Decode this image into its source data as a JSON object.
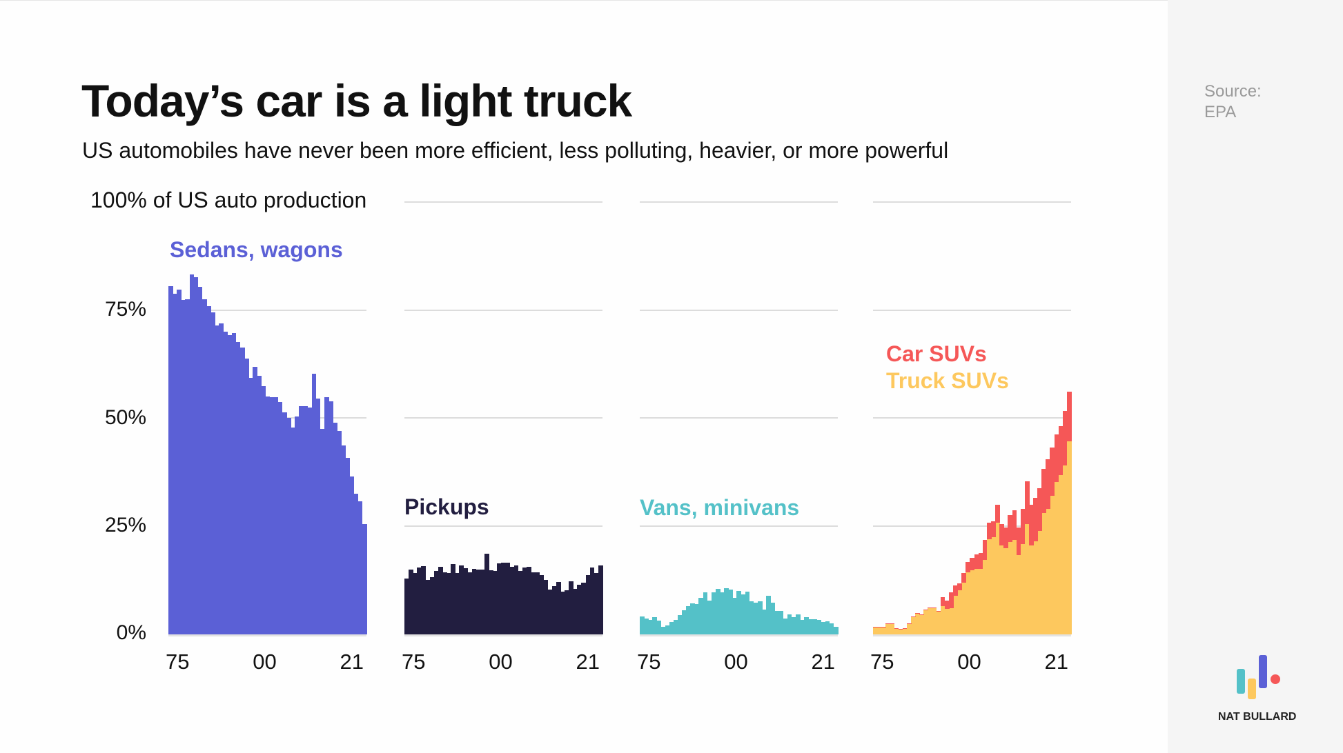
{
  "title": "Today’s car is a light truck",
  "subtitle": "US automobiles have never been more efficient, less polluting, heavier, or more powerful",
  "source": {
    "label": "Source:",
    "value": "EPA"
  },
  "brand": "NAT BULLARD",
  "colors": {
    "sedans": "#5b60d6",
    "pickups": "#221e40",
    "vans": "#54c1c8",
    "car_suvs": "#f55757",
    "truck_suvs": "#fdc85e"
  },
  "chart_data": {
    "type": "bar",
    "title": "Today’s car is a light truck",
    "ylabel": "100% of US auto production",
    "ylim": [
      0,
      100
    ],
    "yticks": [
      "0%",
      "25%",
      "50%",
      "75%"
    ],
    "xticks": [
      "75",
      "00",
      "21"
    ],
    "x": [
      1975,
      1976,
      1977,
      1978,
      1979,
      1980,
      1981,
      1982,
      1983,
      1984,
      1985,
      1986,
      1987,
      1988,
      1989,
      1990,
      1991,
      1992,
      1993,
      1994,
      1995,
      1996,
      1997,
      1998,
      1999,
      2000,
      2001,
      2002,
      2003,
      2004,
      2005,
      2006,
      2007,
      2008,
      2009,
      2010,
      2011,
      2012,
      2013,
      2014,
      2015,
      2016,
      2017,
      2018,
      2019,
      2020,
      2021
    ],
    "grid": true,
    "panels": [
      {
        "label": "Sedans, wagons",
        "series": [
          {
            "name": "Sedans, wagons",
            "values": [
              80.6,
              78.9,
              79.9,
              77.4,
              77.7,
              83.4,
              82.7,
              80.5,
              77.7,
              76,
              74.6,
              71.6,
              72.1,
              70.2,
              69.3,
              69.8,
              67.8,
              66.5,
              63.9,
              59.5,
              62,
              59.9,
              57.5,
              55.1,
              55,
              55,
              53.8,
              51.4,
              50.2,
              48,
              50.5,
              52.9,
              52.9,
              52.6,
              60.4,
              54.6,
              47.6,
              55,
              54,
              49.1,
              47.1,
              43.8,
              40.9,
              36.6,
              32.6,
              30.8,
              25.5
            ]
          }
        ]
      },
      {
        "label": "Pickups",
        "series": [
          {
            "name": "Pickups",
            "values": [
              13,
              15,
              14.2,
              15.5,
              15.8,
              12.6,
              13.3,
              14.7,
              15.6,
              14.3,
              14.2,
              16.3,
              14.2,
              16,
              15.4,
              14.4,
              15.2,
              15,
              15,
              18.7,
              14.8,
              14.7,
              16.4,
              16.6,
              16.6,
              15.7,
              16,
              14.7,
              15.5,
              15.7,
              14.4,
              14.3,
              13.8,
              12.7,
              10.4,
              11.2,
              12.2,
              9.9,
              10.2,
              12.3,
              10.5,
              11.5,
              12,
              13.8,
              15.5,
              14.2,
              16
            ]
          }
        ]
      },
      {
        "label": "Vans, minivans",
        "series": [
          {
            "name": "Vans, minivans",
            "values": [
              4.2,
              3.7,
              3.4,
              4,
              3.2,
              1.8,
              2,
              2.9,
              3.4,
              4.4,
              5.6,
              6.5,
              7.2,
              7,
              8.5,
              9.7,
              7.9,
              9.7,
              10.6,
              9.7,
              10.7,
              10.4,
              8.5,
              10,
              9.3,
              9.9,
              7.6,
              7.4,
              7.6,
              5.8,
              9,
              7.4,
              5.4,
              5.4,
              3.6,
              4.6,
              4,
              4.6,
              3.3,
              4,
              3.5,
              3.5,
              3.4,
              2.8,
              3,
              2.6,
              1.7
            ]
          }
        ]
      },
      {
        "label": "",
        "stacked": true,
        "series": [
          {
            "name": "Truck SUVs",
            "values": [
              1.6,
              1.7,
              1.7,
              2.4,
              2.5,
              1.4,
              1.2,
              1.4,
              2.5,
              4.1,
              4.8,
              4.6,
              5.6,
              6.1,
              6.1,
              5.3,
              6.6,
              5.9,
              6.1,
              8.9,
              10.3,
              12,
              14.3,
              14.8,
              15.1,
              15.1,
              17.3,
              22.1,
              22.5,
              25.9,
              20.6,
              19.9,
              21.4,
              21.9,
              18.3,
              20.9,
              25.5,
              20.6,
              21.6,
              23.9,
              28.1,
              29,
              32.1,
              35.3,
              36.9,
              39.2,
              44.8
            ]
          },
          {
            "name": "Car SUVs",
            "values": [
              0.1,
              0.1,
              0.1,
              0.1,
              0.1,
              0.1,
              0.1,
              0.1,
              0.1,
              0.1,
              0.1,
              0.1,
              0.1,
              0.1,
              0.1,
              0.1,
              2,
              1.9,
              3.6,
              2.4,
              1.5,
              2.2,
              2.5,
              2.9,
              3.4,
              3.7,
              4.6,
              3.8,
              3.7,
              4.1,
              5,
              4.9,
              6.2,
              6.8,
              6.5,
              8.1,
              10,
              9.4,
              10.1,
              10,
              10.2,
              11.5,
              11.2,
              11.1,
              11.4,
              12.6,
              11.4
            ]
          }
        ]
      }
    ]
  }
}
